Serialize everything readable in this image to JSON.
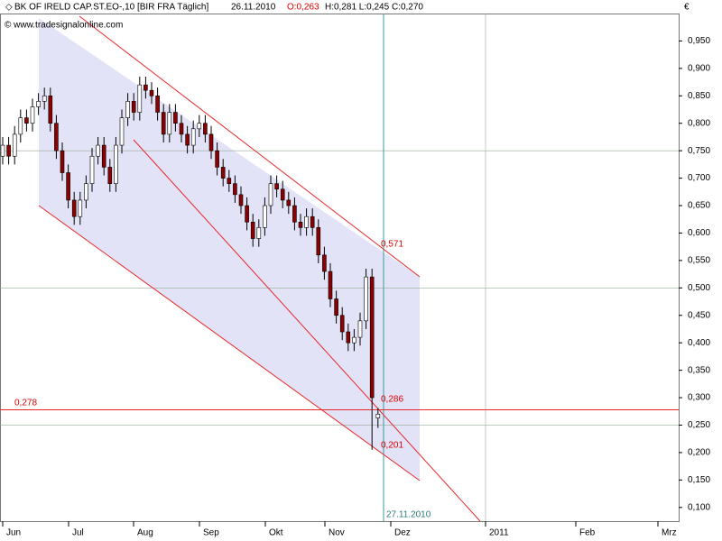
{
  "chart_data": {
    "type": "candlestick",
    "header": {
      "name": "BK OF IRELD CAP.ST.EO-,10 [BIR FRA  Täglich]",
      "date": "26.11.2010",
      "open": "O:0,263",
      "rest": "H:0,281 L:0,245 C:0,270"
    },
    "watermark": "© www.tradesignalonline.com",
    "currency": "€",
    "up_color": "#ffffff",
    "down_color": "#8b0000",
    "channel_color": "#dcdcf5",
    "line_color": "#e8282a",
    "ylim": [
      0.075,
      1.0
    ],
    "yticks": [
      {
        "value": 0.1,
        "label": "0,100"
      },
      {
        "value": 0.15,
        "label": "0,150"
      },
      {
        "value": 0.2,
        "label": "0,200"
      },
      {
        "value": 0.25,
        "label": "0,250"
      },
      {
        "value": 0.3,
        "label": "0,300"
      },
      {
        "value": 0.35,
        "label": "0,350"
      },
      {
        "value": 0.4,
        "label": "0,400"
      },
      {
        "value": 0.45,
        "label": "0,450"
      },
      {
        "value": 0.5,
        "label": "0,500"
      },
      {
        "value": 0.55,
        "label": "0,550"
      },
      {
        "value": 0.6,
        "label": "0,600"
      },
      {
        "value": 0.65,
        "label": "0,650"
      },
      {
        "value": 0.7,
        "label": "0,700"
      },
      {
        "value": 0.75,
        "label": "0,750"
      },
      {
        "value": 0.8,
        "label": "0,800"
      },
      {
        "value": 0.85,
        "label": "0,850"
      },
      {
        "value": 0.9,
        "label": "0,900"
      },
      {
        "value": 0.95,
        "label": "0,950"
      }
    ],
    "grid_values": [
      0.25,
      0.5,
      0.75
    ],
    "xtick_labels": [
      "Jun",
      "Jul",
      "Aug",
      "Sep",
      "Okt",
      "Nov",
      "Dez",
      "2011",
      "Feb",
      "Mrz"
    ],
    "annotations": {
      "channel_top": "0,571",
      "mid_top": "0,286",
      "mid_bottom": "0,201",
      "hline": "0,278",
      "cursor_date": "27.11.2010"
    },
    "hline_value": 0.278,
    "open": [
      0.74,
      0.76,
      0.74,
      0.78,
      0.81,
      0.8,
      0.83,
      0.84,
      0.85,
      0.8,
      0.75,
      0.71,
      0.66,
      0.63,
      0.66,
      0.69,
      0.74,
      0.76,
      0.72,
      0.69,
      0.76,
      0.81,
      0.84,
      0.82,
      0.87,
      0.86,
      0.85,
      0.82,
      0.78,
      0.82,
      0.8,
      0.78,
      0.76,
      0.79,
      0.8,
      0.78,
      0.75,
      0.72,
      0.7,
      0.69,
      0.67,
      0.65,
      0.62,
      0.59,
      0.61,
      0.65,
      0.69,
      0.68,
      0.66,
      0.65,
      0.62,
      0.61,
      0.63,
      0.61,
      0.56,
      0.53,
      0.48,
      0.45,
      0.42,
      0.4,
      0.41,
      0.44,
      0.52,
      0.263
    ],
    "high": [
      0.775,
      0.775,
      0.795,
      0.825,
      0.825,
      0.845,
      0.855,
      0.865,
      0.865,
      0.815,
      0.765,
      0.725,
      0.675,
      0.675,
      0.705,
      0.755,
      0.775,
      0.775,
      0.735,
      0.775,
      0.825,
      0.855,
      0.855,
      0.885,
      0.885,
      0.875,
      0.865,
      0.835,
      0.835,
      0.835,
      0.815,
      0.795,
      0.805,
      0.815,
      0.815,
      0.795,
      0.765,
      0.735,
      0.715,
      0.705,
      0.685,
      0.665,
      0.635,
      0.625,
      0.665,
      0.705,
      0.705,
      0.695,
      0.675,
      0.665,
      0.635,
      0.645,
      0.645,
      0.625,
      0.575,
      0.545,
      0.495,
      0.465,
      0.435,
      0.425,
      0.455,
      0.535,
      0.535,
      0.281
    ],
    "low": [
      0.725,
      0.725,
      0.725,
      0.765,
      0.785,
      0.785,
      0.815,
      0.825,
      0.785,
      0.735,
      0.695,
      0.645,
      0.615,
      0.615,
      0.645,
      0.675,
      0.725,
      0.705,
      0.675,
      0.675,
      0.745,
      0.795,
      0.805,
      0.805,
      0.845,
      0.835,
      0.805,
      0.765,
      0.765,
      0.785,
      0.765,
      0.745,
      0.745,
      0.775,
      0.765,
      0.735,
      0.705,
      0.685,
      0.675,
      0.655,
      0.635,
      0.605,
      0.575,
      0.575,
      0.595,
      0.635,
      0.665,
      0.645,
      0.635,
      0.605,
      0.595,
      0.595,
      0.595,
      0.545,
      0.515,
      0.465,
      0.435,
      0.405,
      0.385,
      0.385,
      0.395,
      0.425,
      0.205,
      0.245
    ],
    "close": [
      0.76,
      0.74,
      0.78,
      0.81,
      0.8,
      0.83,
      0.84,
      0.85,
      0.8,
      0.75,
      0.71,
      0.66,
      0.63,
      0.66,
      0.69,
      0.74,
      0.76,
      0.72,
      0.69,
      0.76,
      0.81,
      0.84,
      0.82,
      0.87,
      0.86,
      0.85,
      0.82,
      0.78,
      0.82,
      0.8,
      0.78,
      0.76,
      0.79,
      0.8,
      0.78,
      0.75,
      0.72,
      0.7,
      0.69,
      0.67,
      0.65,
      0.62,
      0.59,
      0.61,
      0.65,
      0.69,
      0.68,
      0.66,
      0.65,
      0.62,
      0.61,
      0.63,
      0.61,
      0.56,
      0.53,
      0.48,
      0.45,
      0.42,
      0.4,
      0.41,
      0.44,
      0.52,
      0.3,
      0.27
    ]
  }
}
